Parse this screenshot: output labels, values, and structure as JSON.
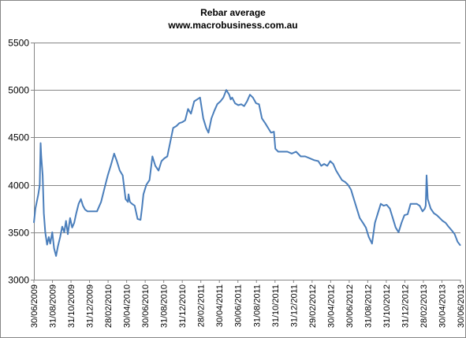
{
  "chart_data": {
    "type": "line",
    "title": "Rebar average",
    "subtitle": "www.macrobusiness.com.au",
    "xlabel": "",
    "ylabel": "",
    "ylim": [
      3000,
      5500
    ],
    "yticks": [
      3000,
      3500,
      4000,
      4500,
      5000,
      5500
    ],
    "xlim": [
      "2009-06-30",
      "2013-06-30"
    ],
    "x_tick_labels": [
      "30/06/2009",
      "31/08/2009",
      "31/10/2009",
      "31/12/2009",
      "28/02/2010",
      "30/04/2010",
      "30/06/2010",
      "31/08/2010",
      "31/12/2010",
      "28/02/2011",
      "30/04/2011",
      "30/06/2011",
      "31/08/2011",
      "31/10/2011",
      "31/12/2011",
      "29/02/2012",
      "30/04/2012",
      "30/06/2012",
      "31/08/2012",
      "31/10/2012",
      "31/12/2012",
      "28/02/2013",
      "30/04/2013",
      "30/06/2013"
    ],
    "grid": true,
    "legend": "none",
    "line_color": "#4a7ebb",
    "series": [
      {
        "x": [
          "2009-06-30",
          "2009-07-05",
          "2009-07-15",
          "2009-07-20",
          "2009-07-23",
          "2009-07-25",
          "2009-07-30",
          "2009-08-03",
          "2009-08-08",
          "2009-08-14",
          "2009-08-20",
          "2009-08-25",
          "2009-09-01",
          "2009-09-07",
          "2009-09-14",
          "2009-09-20",
          "2009-09-28",
          "2009-10-05",
          "2009-10-12",
          "2009-10-18",
          "2009-10-24",
          "2009-11-01",
          "2009-11-08",
          "2009-11-15",
          "2009-11-22",
          "2009-11-30",
          "2009-12-08",
          "2009-12-15",
          "2009-12-22",
          "2009-12-31",
          "2010-01-10",
          "2010-01-20",
          "2010-02-01",
          "2010-02-15",
          "2010-02-28",
          "2010-03-10",
          "2010-03-20",
          "2010-04-01",
          "2010-04-10",
          "2010-04-20",
          "2010-04-30",
          "2010-05-10",
          "2010-05-18",
          "2010-05-20",
          "2010-05-25",
          "2010-06-01",
          "2010-06-10",
          "2010-06-20",
          "2010-06-30",
          "2010-07-05",
          "2010-07-10",
          "2010-07-20",
          "2010-07-31",
          "2010-08-10",
          "2010-08-20",
          "2010-08-31",
          "2010-09-10",
          "2010-09-20",
          "2010-09-30",
          "2010-10-10",
          "2010-10-20",
          "2010-10-31",
          "2010-11-10",
          "2010-11-20",
          "2010-11-30",
          "2010-12-10",
          "2010-12-20",
          "2010-12-31",
          "2011-01-10",
          "2011-01-20",
          "2011-01-31",
          "2011-02-10",
          "2011-02-18",
          "2011-02-28",
          "2011-03-10",
          "2011-03-20",
          "2011-03-31",
          "2011-04-10",
          "2011-04-20",
          "2011-04-30",
          "2011-05-05",
          "2011-05-10",
          "2011-05-20",
          "2011-05-31",
          "2011-06-10",
          "2011-06-20",
          "2011-06-30",
          "2011-07-10",
          "2011-07-20",
          "2011-07-31",
          "2011-08-10",
          "2011-08-20",
          "2011-08-31",
          "2011-09-10",
          "2011-09-20",
          "2011-09-30",
          "2011-10-05",
          "2011-10-15",
          "2011-10-31",
          "2011-11-15",
          "2011-11-30",
          "2011-12-15",
          "2011-12-31",
          "2012-01-15",
          "2012-01-31",
          "2012-02-15",
          "2012-02-29",
          "2012-03-10",
          "2012-03-20",
          "2012-03-31",
          "2012-04-10",
          "2012-04-20",
          "2012-04-30",
          "2012-05-10",
          "2012-05-20",
          "2012-05-31",
          "2012-06-10",
          "2012-06-20",
          "2012-06-30",
          "2012-07-10",
          "2012-07-20",
          "2012-07-31",
          "2012-08-10",
          "2012-08-20",
          "2012-08-31",
          "2012-09-10",
          "2012-09-20",
          "2012-09-30",
          "2012-10-10",
          "2012-10-20",
          "2012-10-31",
          "2012-11-10",
          "2012-11-20",
          "2012-11-30",
          "2012-12-10",
          "2012-12-20",
          "2012-12-31",
          "2013-01-10",
          "2013-01-20",
          "2013-01-31",
          "2013-02-10",
          "2013-02-20",
          "2013-02-28",
          "2013-03-03",
          "2013-03-06",
          "2013-03-10",
          "2013-03-20",
          "2013-03-31",
          "2013-04-10",
          "2013-04-20",
          "2013-04-30",
          "2013-05-10",
          "2013-05-20",
          "2013-05-31",
          "2013-06-10",
          "2013-06-20",
          "2013-06-30"
        ],
        "y": [
          3600,
          3750,
          3900,
          4000,
          4440,
          4300,
          4100,
          3700,
          3500,
          3370,
          3450,
          3380,
          3500,
          3330,
          3250,
          3350,
          3450,
          3560,
          3500,
          3620,
          3480,
          3650,
          3550,
          3600,
          3700,
          3800,
          3850,
          3780,
          3740,
          3720,
          3720,
          3720,
          3720,
          3820,
          3980,
          4100,
          4200,
          4330,
          4250,
          4150,
          4100,
          3850,
          3820,
          3900,
          3820,
          3800,
          3780,
          3640,
          3630,
          3750,
          3900,
          4000,
          4050,
          4300,
          4200,
          4150,
          4250,
          4280,
          4300,
          4450,
          4600,
          4620,
          4650,
          4660,
          4680,
          4800,
          4750,
          4880,
          4900,
          4920,
          4700,
          4600,
          4550,
          4700,
          4780,
          4850,
          4880,
          4920,
          5000,
          4950,
          4900,
          4920,
          4860,
          4840,
          4850,
          4830,
          4880,
          4950,
          4920,
          4860,
          4850,
          4700,
          4650,
          4600,
          4550,
          4560,
          4380,
          4350,
          4350,
          4350,
          4330,
          4350,
          4300,
          4300,
          4280,
          4260,
          4250,
          4200,
          4220,
          4200,
          4250,
          4220,
          4150,
          4100,
          4050,
          4030,
          4000,
          3950,
          3850,
          3750,
          3650,
          3600,
          3550,
          3450,
          3380,
          3600,
          3700,
          3800,
          3780,
          3790,
          3750,
          3650,
          3550,
          3500,
          3600,
          3680,
          3690,
          3800,
          3800,
          3800,
          3780,
          3720,
          3750,
          3780,
          4100,
          3850,
          3750,
          3700,
          3680,
          3650,
          3620,
          3600,
          3560,
          3520,
          3480,
          3400,
          3360
        ]
      }
    ]
  }
}
